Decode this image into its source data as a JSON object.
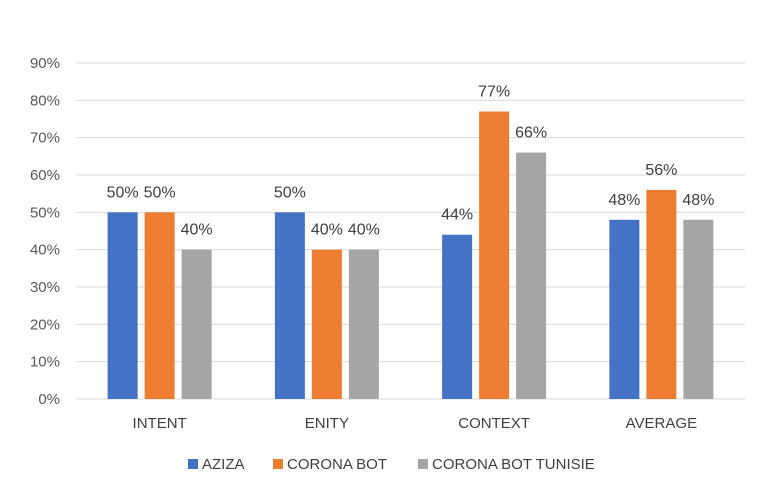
{
  "chart_data": {
    "type": "bar",
    "categories": [
      "INTENT",
      "ENITY",
      "CONTEXT",
      "AVERAGE"
    ],
    "series": [
      {
        "name": "AZIZA",
        "color": "#4472c4",
        "values": [
          50,
          50,
          44,
          48
        ],
        "labels": [
          "50%",
          "50%",
          "44%",
          "48%"
        ]
      },
      {
        "name": "CORONA BOT",
        "color": "#ed7d31",
        "values": [
          50,
          40,
          77,
          56
        ],
        "labels": [
          "50%",
          "40%",
          "77%",
          "56%"
        ]
      },
      {
        "name": "CORONA BOT TUNISIE",
        "color": "#a5a5a5",
        "values": [
          40,
          40,
          66,
          48
        ],
        "labels": [
          "40%",
          "40%",
          "66%",
          "48%"
        ]
      }
    ],
    "ylim": [
      0,
      90
    ],
    "yticks": [
      "0%",
      "10%",
      "20%",
      "30%",
      "40%",
      "50%",
      "60%",
      "70%",
      "80%",
      "90%"
    ],
    "grid": true,
    "legend": "bottom"
  }
}
